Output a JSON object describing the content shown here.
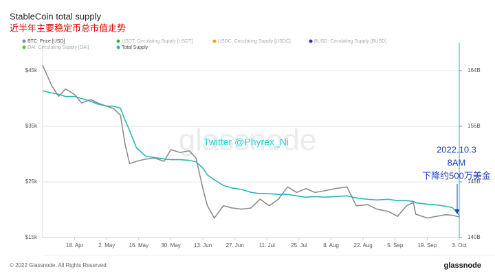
{
  "chart_data": {
    "type": "line",
    "title": "StableCoin total supply",
    "subtitle": "近半年主要稳定币总市值走势",
    "x": [
      "04-04",
      "04-08",
      "04-11",
      "04-14",
      "04-18",
      "04-21",
      "04-25",
      "04-28",
      "05-02",
      "05-05",
      "05-08",
      "05-10",
      "05-12",
      "05-15",
      "05-19",
      "05-23",
      "05-27",
      "05-30",
      "06-03",
      "06-07",
      "06-10",
      "06-13",
      "06-15",
      "06-18",
      "06-22",
      "06-26",
      "06-30",
      "07-04",
      "07-08",
      "07-12",
      "07-16",
      "07-20",
      "07-24",
      "07-28",
      "08-01",
      "08-05",
      "08-10",
      "08-15",
      "08-19",
      "08-24",
      "08-28",
      "09-02",
      "09-06",
      "09-10",
      "09-13",
      "09-14",
      "09-19",
      "09-23",
      "09-27",
      "09-30",
      "10-03"
    ],
    "xlim": [
      "04-04",
      "10-03"
    ],
    "xticks": [
      {
        "value": "04-18",
        "label": "18. Apr"
      },
      {
        "value": "05-02",
        "label": "2. May"
      },
      {
        "value": "05-16",
        "label": "16. May"
      },
      {
        "value": "05-30",
        "label": "30. May"
      },
      {
        "value": "06-13",
        "label": "13. Jun"
      },
      {
        "value": "06-27",
        "label": "27. Jun"
      },
      {
        "value": "07-11",
        "label": "11. Jul"
      },
      {
        "value": "07-25",
        "label": "25. Jul"
      },
      {
        "value": "08-08",
        "label": "8. Aug"
      },
      {
        "value": "08-22",
        "label": "22. Aug"
      },
      {
        "value": "09-05",
        "label": "5. Sep"
      },
      {
        "value": "09-19",
        "label": "19. Sep"
      },
      {
        "value": "10-03",
        "label": "3. Oct"
      }
    ],
    "ylim": [
      15000,
      50000
    ],
    "yticks": [
      {
        "value": 15000,
        "label": "$15k"
      },
      {
        "value": 25000,
        "label": "$25k"
      },
      {
        "value": 35000,
        "label": "$35k"
      },
      {
        "value": 45000,
        "label": "$45k"
      }
    ],
    "y2lim": [
      140,
      168
    ],
    "y2ticks": [
      {
        "value": 140,
        "label": "140B"
      },
      {
        "value": 148,
        "label": "148B"
      },
      {
        "value": 156,
        "label": "156B"
      },
      {
        "value": 164,
        "label": "164B"
      }
    ],
    "grid": true,
    "series": [
      {
        "name": "BTC: Price [USD]",
        "color": "#8c8c8c",
        "axis": "y",
        "values": [
          46000,
          42300,
          40400,
          41700,
          40700,
          39200,
          39800,
          39200,
          38600,
          38200,
          37000,
          31800,
          28300,
          28700,
          29100,
          29300,
          28700,
          30800,
          30300,
          30600,
          29300,
          23800,
          20700,
          18500,
          20700,
          20300,
          20100,
          20300,
          21900,
          20700,
          21900,
          24100,
          23100,
          23800,
          23100,
          23400,
          23800,
          24100,
          20700,
          20900,
          20100,
          19700,
          18800,
          20700,
          21300,
          19200,
          18500,
          18800,
          19100,
          19000,
          18700
        ]
      },
      {
        "name": "Total Supply",
        "color": "#2bb5b5",
        "axis": "y2",
        "values": [
          161.1,
          160.8,
          160.6,
          160.3,
          160.3,
          160.0,
          159.6,
          159.2,
          158.9,
          158.9,
          158.6,
          156.9,
          155.4,
          152.9,
          151.7,
          151.5,
          151.3,
          151.2,
          151.2,
          151.1,
          150.9,
          150.0,
          149.0,
          148.3,
          147.5,
          147.1,
          146.9,
          146.5,
          146.3,
          146.3,
          146.2,
          146.2,
          146.0,
          145.8,
          145.9,
          145.8,
          145.9,
          146.0,
          145.7,
          145.5,
          145.4,
          145.5,
          145.3,
          145.3,
          145.2,
          145.0,
          144.8,
          144.7,
          144.5,
          144.3,
          143.2
        ]
      }
    ],
    "hidden_series": [
      {
        "name": "USDT: Circulating Supply [USDT]",
        "color": "#2db84d"
      },
      {
        "name": "USDC: Circulating Supply [USDC]",
        "color": "#f0a020"
      },
      {
        "name": "BUSD: Circulating Supply [BUSD]",
        "color": "#2233aa"
      },
      {
        "name": "DAI: Circulating Supply [DAI]",
        "color": "#44cc22"
      }
    ],
    "watermark": "glassnode",
    "annotations": [
      "Twitter @Phyrex_Ni",
      "2022.10.3",
      "8AM",
      "下降约500万美金"
    ],
    "footer": "© 2022 Glassnode. All Rights Reserved.",
    "logo": "glassnode"
  }
}
